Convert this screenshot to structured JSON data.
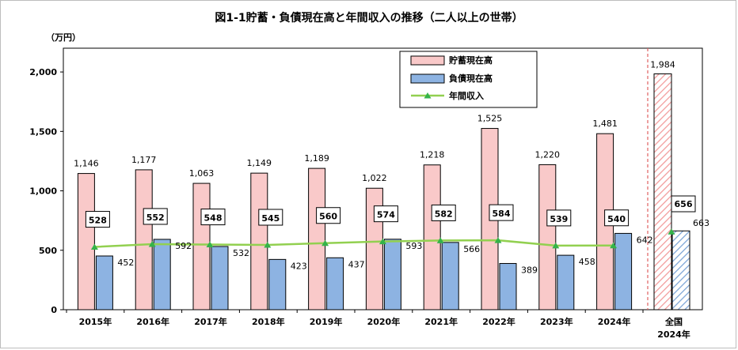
{
  "chart_data": {
    "type": "bar",
    "title": "図1-1貯蓄・負債現在高と年間収入の推移（二人以上の世帯）",
    "unit_label": "（万円）",
    "categories": [
      "2015年",
      "2016年",
      "2017年",
      "2018年",
      "2019年",
      "2020年",
      "2021年",
      "2022年",
      "2023年",
      "2024年"
    ],
    "extra_category": {
      "line1": "全国",
      "line2": "2024年"
    },
    "ylim": [
      0,
      2200
    ],
    "y_ticks": [
      0,
      500,
      1000,
      1500,
      2000
    ],
    "y_tick_labels": [
      "0",
      "500",
      "1,000",
      "1,500",
      "2,000"
    ],
    "grid": false,
    "legend_position": "top-center",
    "series": [
      {
        "name": "貯蓄現在高",
        "type": "bar",
        "color": "#f9c9c9",
        "values": [
          1146,
          1177,
          1063,
          1149,
          1189,
          1022,
          1218,
          1525,
          1220,
          1481
        ],
        "labels": [
          "1,146",
          "1,177",
          "1,063",
          "1,149",
          "1,189",
          "1,022",
          "1,218",
          "1,525",
          "1,220",
          "1,481"
        ],
        "extra_value": 1984,
        "extra_label": "1,984"
      },
      {
        "name": "負債現在高",
        "type": "bar",
        "color": "#8db3e2",
        "values": [
          452,
          592,
          532,
          423,
          437,
          593,
          566,
          389,
          458,
          642
        ],
        "labels": [
          "452",
          "592",
          "532",
          "423",
          "437",
          "593",
          "566",
          "389",
          "458",
          "642"
        ],
        "extra_value": 663,
        "extra_label": "663"
      },
      {
        "name": "年間収入",
        "type": "line",
        "color": "#92d050",
        "values": [
          528,
          552,
          548,
          545,
          560,
          574,
          582,
          584,
          539,
          540
        ],
        "labels": [
          "528",
          "552",
          "548",
          "545",
          "560",
          "574",
          "582",
          "584",
          "539",
          "540"
        ],
        "extra_value": 656,
        "extra_label": "656"
      }
    ]
  }
}
